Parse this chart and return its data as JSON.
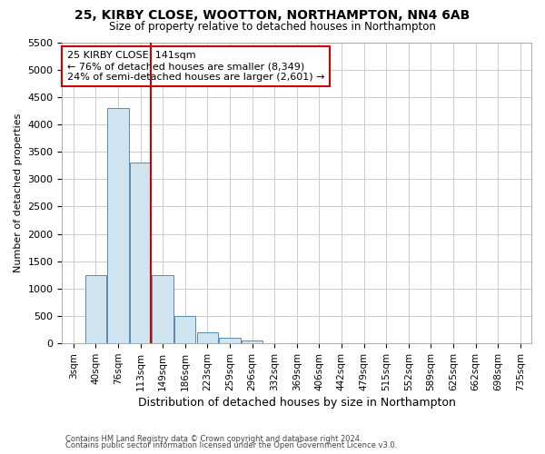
{
  "title1": "25, KIRBY CLOSE, WOOTTON, NORTHAMPTON, NN4 6AB",
  "title2": "Size of property relative to detached houses in Northampton",
  "xlabel": "Distribution of detached houses by size in Northampton",
  "ylabel": "Number of detached properties",
  "footer1": "Contains HM Land Registry data © Crown copyright and database right 2024.",
  "footer2": "Contains public sector information licensed under the Open Government Licence v3.0.",
  "annotation_title": "25 KIRBY CLOSE: 141sqm",
  "annotation_line1": "← 76% of detached houses are smaller (8,349)",
  "annotation_line2": "24% of semi-detached houses are larger (2,601) →",
  "bar_color": "#d0e4f0",
  "bar_edge_color": "#5a8ab0",
  "vline_color": "#cc0000",
  "categories": [
    "3sqm",
    "40sqm",
    "76sqm",
    "113sqm",
    "149sqm",
    "186sqm",
    "223sqm",
    "259sqm",
    "296sqm",
    "332sqm",
    "369sqm",
    "406sqm",
    "442sqm",
    "479sqm",
    "515sqm",
    "552sqm",
    "589sqm",
    "625sqm",
    "662sqm",
    "698sqm",
    "735sqm"
  ],
  "bar_heights": [
    0,
    1250,
    4300,
    3300,
    1250,
    500,
    210,
    100,
    60,
    0,
    0,
    0,
    0,
    0,
    0,
    0,
    0,
    0,
    0,
    0,
    0
  ],
  "ylim": [
    0,
    5500
  ],
  "yticks": [
    0,
    500,
    1000,
    1500,
    2000,
    2500,
    3000,
    3500,
    4000,
    4500,
    5000,
    5500
  ],
  "background_color": "#ffffff",
  "grid_color": "#cccccc"
}
